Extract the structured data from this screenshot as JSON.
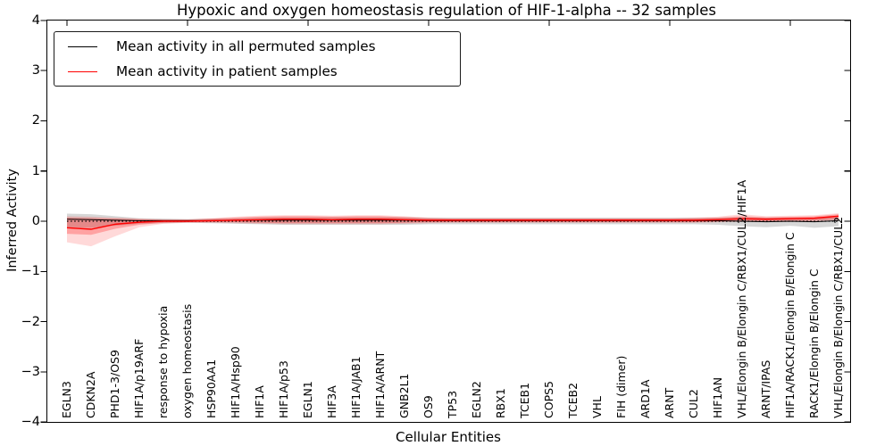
{
  "title": "Hypoxic and oxygen homeostasis regulation of HIF-1-alpha -- 32 samples",
  "legend": {
    "items": [
      {
        "label": "Mean activity in all permuted samples",
        "color": "#000000"
      },
      {
        "label": "Mean activity in patient samples",
        "color": "#ff0000"
      }
    ]
  },
  "chart_data": {
    "type": "line",
    "title": "Hypoxic and oxygen homeostasis regulation of HIF-1-alpha -- 32 samples",
    "xlabel": "Cellular Entities",
    "ylabel": "Inferred Activity",
    "ylim": [
      -4,
      4
    ],
    "yticks": [
      4,
      3,
      2,
      1,
      0,
      -1,
      -2,
      -3,
      -4
    ],
    "top_tick_indices": [
      0,
      5,
      10,
      15,
      20,
      25,
      30
    ],
    "zero_line": true,
    "grid": false,
    "legend_position": "upper left",
    "categories": [
      "EGLN3",
      "CDKN2A",
      "PHD1-3/OS9",
      "HIF1A/p19ARF",
      "response to hypoxia",
      "oxygen homeostasis",
      "HSP90AA1",
      "HIF1A/Hsp90",
      "HIF1A",
      "HIF1A/p53",
      "EGLN1",
      "HIF3A",
      "HIF1A/JAB1",
      "HIF1A/ARNT",
      "GNB2L1",
      "OS9",
      "TP53",
      "EGLN2",
      "RBX1",
      "TCEB1",
      "COPS5",
      "TCEB2",
      "VHL",
      "FIH (dimer)",
      "ARD1A",
      "ARNT",
      "CUL2",
      "HIF1AN",
      "VHL/Elongin B/Elongin C/RBX1/CUL2/HIF1A",
      "ARNT/IPAS",
      "HIF1A/RACK1/Elongin B/Elongin C",
      "RACK1/Elongin B/Elongin C",
      "VHL/Elongin B/Elongin C/RBX1/CUL2"
    ],
    "series": [
      {
        "name": "Mean activity in all permuted samples",
        "color": "#000000",
        "line_width": 1,
        "values": [
          0.04,
          0.03,
          0.02,
          0.01,
          0.01,
          0.01,
          0.01,
          0.02,
          0.02,
          0.02,
          0.02,
          0.02,
          0.02,
          0.02,
          0.02,
          0.01,
          0.01,
          0.01,
          0.01,
          0.01,
          0.01,
          0.01,
          0.01,
          0.01,
          0.01,
          0.01,
          0.01,
          0.01,
          0.0,
          -0.01,
          0.0,
          -0.01,
          0.01
        ],
        "band": {
          "color": "rgba(110,110,110,0.28)",
          "lo": [
            -0.12,
            -0.13,
            -0.09,
            -0.05,
            -0.04,
            -0.03,
            -0.04,
            -0.05,
            -0.06,
            -0.07,
            -0.07,
            -0.07,
            -0.07,
            -0.07,
            -0.07,
            -0.06,
            -0.06,
            -0.06,
            -0.06,
            -0.06,
            -0.06,
            -0.06,
            -0.06,
            -0.06,
            -0.06,
            -0.06,
            -0.06,
            -0.07,
            -0.1,
            -0.12,
            -0.09,
            -0.13,
            -0.1
          ],
          "hi": [
            0.15,
            0.14,
            0.1,
            0.06,
            0.05,
            0.04,
            0.05,
            0.06,
            0.07,
            0.08,
            0.08,
            0.08,
            0.08,
            0.08,
            0.08,
            0.07,
            0.07,
            0.07,
            0.07,
            0.07,
            0.07,
            0.07,
            0.07,
            0.07,
            0.07,
            0.07,
            0.07,
            0.07,
            0.08,
            0.07,
            0.07,
            0.07,
            0.07
          ]
        }
      },
      {
        "name": "Mean activity in patient samples",
        "color": "#ff0000",
        "line_width": 1.4,
        "values": [
          -0.13,
          -0.16,
          -0.06,
          -0.02,
          0.0,
          0.0,
          0.01,
          0.02,
          0.03,
          0.04,
          0.04,
          0.03,
          0.04,
          0.04,
          0.03,
          0.02,
          0.02,
          0.02,
          0.02,
          0.02,
          0.02,
          0.02,
          0.02,
          0.02,
          0.02,
          0.02,
          0.02,
          0.03,
          0.05,
          0.04,
          0.05,
          0.06,
          0.1
        ],
        "band": {
          "color": "rgba(255,0,0,0.15)",
          "lo": [
            -0.42,
            -0.5,
            -0.3,
            -0.12,
            -0.05,
            -0.03,
            -0.03,
            -0.04,
            -0.05,
            -0.06,
            -0.06,
            -0.06,
            -0.06,
            -0.06,
            -0.05,
            -0.04,
            -0.03,
            -0.03,
            -0.03,
            -0.03,
            -0.03,
            -0.03,
            -0.03,
            -0.03,
            -0.03,
            -0.03,
            -0.03,
            -0.02,
            -0.01,
            -0.01,
            -0.01,
            0.0,
            0.02
          ],
          "hi": [
            0.1,
            0.09,
            0.07,
            0.05,
            0.04,
            0.04,
            0.06,
            0.09,
            0.11,
            0.12,
            0.12,
            0.11,
            0.12,
            0.12,
            0.1,
            0.07,
            0.06,
            0.06,
            0.06,
            0.06,
            0.06,
            0.06,
            0.06,
            0.06,
            0.06,
            0.06,
            0.07,
            0.09,
            0.14,
            0.1,
            0.11,
            0.12,
            0.16
          ]
        },
        "band_inner": {
          "color": "rgba(255,0,0,0.25)",
          "lo": [
            -0.25,
            -0.27,
            -0.15,
            -0.07,
            -0.03,
            -0.02,
            -0.02,
            -0.02,
            -0.03,
            -0.04,
            -0.04,
            -0.04,
            -0.04,
            -0.04,
            -0.03,
            -0.02,
            -0.02,
            -0.02,
            -0.02,
            -0.02,
            -0.02,
            -0.02,
            -0.02,
            -0.02,
            -0.02,
            -0.02,
            -0.02,
            -0.01,
            0.0,
            0.0,
            0.0,
            0.01,
            0.04
          ],
          "hi": [
            0.07,
            0.06,
            0.05,
            0.04,
            0.03,
            0.03,
            0.05,
            0.07,
            0.09,
            0.1,
            0.1,
            0.09,
            0.1,
            0.1,
            0.08,
            0.06,
            0.05,
            0.05,
            0.05,
            0.05,
            0.05,
            0.05,
            0.05,
            0.05,
            0.05,
            0.05,
            0.06,
            0.07,
            0.1,
            0.08,
            0.09,
            0.1,
            0.14
          ]
        }
      }
    ]
  }
}
